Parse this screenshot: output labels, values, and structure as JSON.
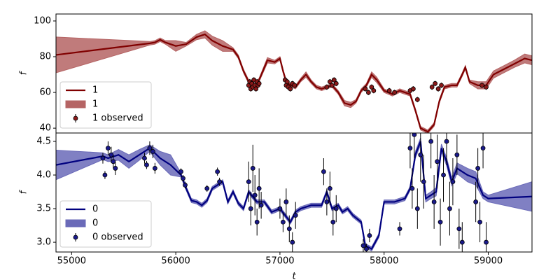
{
  "chart_data": [
    {
      "type": "line",
      "ylabel": "f",
      "legend": "lower left",
      "xlim": [
        54850,
        59420
      ],
      "ylim": [
        37.3,
        103.9
      ],
      "yticks": [
        40,
        60,
        80,
        100
      ],
      "series": [
        {
          "name": "1",
          "color": "#800000",
          "x": [
            54850,
            55750,
            55800,
            55850,
            55900,
            56000,
            56100,
            56200,
            56280,
            56350,
            56450,
            56550,
            56600,
            56650,
            56700,
            56750,
            56800,
            56880,
            56950,
            57000,
            57030,
            57060,
            57100,
            57150,
            57200,
            57250,
            57300,
            57350,
            57400,
            57500,
            57560,
            57620,
            57680,
            57730,
            57780,
            57830,
            57880,
            57930,
            58000,
            58080,
            58150,
            58200,
            58250,
            58300,
            58350,
            58420,
            58480,
            58530,
            58580,
            58650,
            58700,
            58750,
            58780,
            58820,
            58900,
            58980,
            59050,
            59150,
            59250,
            59350,
            59420
          ],
          "values": [
            81,
            87.5,
            88,
            89.5,
            88,
            86,
            87,
            91,
            92.5,
            89,
            86,
            84,
            80,
            72,
            66,
            63,
            67,
            78,
            77,
            79,
            72,
            66,
            64,
            63,
            67,
            70,
            66,
            63,
            62,
            64,
            60,
            54,
            53,
            55,
            61,
            64,
            70,
            67,
            61,
            59,
            61,
            60,
            59,
            50,
            40,
            38,
            42,
            55,
            63,
            64,
            64,
            70,
            74,
            66,
            64,
            64,
            70,
            73,
            76,
            79,
            78
          ]
        }
      ],
      "band": {
        "name": "1",
        "color": "#b56464",
        "errors": [
          10,
          1,
          1,
          1,
          1,
          3,
          1,
          1.5,
          2,
          2.5,
          3,
          1,
          1,
          1,
          1,
          1,
          1,
          1.5,
          1,
          1,
          1,
          1,
          1,
          1,
          1,
          1.5,
          1,
          1,
          1,
          1,
          1,
          1.5,
          1.5,
          1,
          1,
          1,
          1.5,
          1.5,
          1,
          1,
          1,
          1,
          1,
          1,
          1,
          1,
          1,
          1,
          1,
          1,
          1,
          1,
          1,
          1,
          2,
          2,
          2,
          2,
          2,
          2.5,
          2.5
        ]
      },
      "observed": {
        "name": "1 observed",
        "color": "#8b1a1a",
        "x": [
          56700,
          56710,
          56720,
          56730,
          56740,
          56750,
          56760,
          56770,
          56780,
          56790,
          56800,
          57050,
          57060,
          57070,
          57080,
          57100,
          57120,
          57140,
          57450,
          57480,
          57500,
          57520,
          57540,
          57820,
          57850,
          57880,
          57900,
          58050,
          58100,
          58250,
          58280,
          58320,
          58460,
          58490,
          58520,
          58550,
          58940,
          58980
        ],
        "values": [
          64,
          66,
          62,
          65,
          63,
          67,
          64,
          62,
          66,
          64,
          65,
          67,
          64,
          66,
          63,
          62,
          65,
          64,
          63,
          66,
          64,
          67,
          65,
          62,
          60,
          63,
          61,
          61,
          60,
          61,
          62,
          56,
          63,
          65,
          62,
          64,
          64,
          63
        ],
        "errors": [
          1.5,
          1.5,
          1.5,
          1.5,
          1.5,
          1.5,
          1.5,
          1.5,
          1.5,
          1.5,
          1.5,
          1.5,
          1.5,
          1.5,
          1.5,
          1.5,
          1.5,
          1.5,
          1.5,
          1.5,
          1.5,
          1.5,
          1.5,
          1.5,
          1.5,
          1.5,
          1.5,
          1.5,
          1.5,
          1.5,
          1.5,
          1.5,
          1.5,
          1.5,
          1.5,
          1.5,
          1.5,
          1.5
        ]
      }
    },
    {
      "type": "line",
      "ylabel": "f",
      "xlabel": "t",
      "legend": "lower left",
      "xlim": [
        54850,
        59420
      ],
      "xticks": [
        55000,
        56000,
        57000,
        58000,
        59000
      ],
      "ylim": [
        2.855,
        4.625
      ],
      "yticks": [
        {
          "value": 3.0,
          "label": "3.0"
        },
        3.5,
        {
          "value": 4.0,
          "label": "4.0"
        },
        4.5
      ],
      "series": [
        {
          "name": "0",
          "color": "#00007f",
          "x": [
            54850,
            55300,
            55350,
            55450,
            55550,
            55650,
            55750,
            55850,
            55950,
            56050,
            56100,
            56150,
            56200,
            56250,
            56300,
            56350,
            56450,
            56500,
            56550,
            56600,
            56650,
            56700,
            56780,
            56850,
            56920,
            57000,
            57050,
            57100,
            57150,
            57200,
            57300,
            57400,
            57450,
            57500,
            57560,
            57600,
            57650,
            57700,
            57780,
            57820,
            57880,
            57950,
            58000,
            58100,
            58200,
            58250,
            58300,
            58350,
            58400,
            58450,
            58500,
            58550,
            58600,
            58650,
            58700,
            58800,
            58880,
            58950,
            59000,
            59420
          ],
          "values": [
            4.15,
            4.28,
            4.25,
            4.3,
            4.2,
            4.3,
            4.4,
            4.25,
            4.15,
            4.0,
            3.8,
            3.62,
            3.6,
            3.55,
            3.62,
            3.8,
            3.9,
            3.6,
            3.75,
            3.58,
            3.5,
            3.75,
            3.6,
            3.6,
            3.45,
            3.5,
            3.4,
            3.3,
            3.45,
            3.5,
            3.55,
            3.55,
            3.75,
            3.5,
            3.55,
            3.45,
            3.5,
            3.4,
            3.3,
            2.95,
            2.9,
            3.1,
            3.6,
            3.6,
            3.65,
            3.8,
            4.3,
            4.5,
            3.65,
            3.7,
            3.75,
            4.4,
            4.2,
            3.9,
            4.1,
            4.0,
            3.95,
            3.7,
            3.65,
            3.68
          ]
        }
      ],
      "band": {
        "name": "0",
        "color": "#6a6ab8",
        "errors": [
          0.22,
          0.05,
          0.05,
          0.08,
          0.1,
          0.08,
          0.05,
          0.1,
          0.15,
          0.03,
          0.03,
          0.03,
          0.03,
          0.03,
          0.03,
          0.03,
          0.03,
          0.03,
          0.03,
          0.03,
          0.03,
          0.03,
          0.03,
          0.03,
          0.03,
          0.03,
          0.03,
          0.03,
          0.03,
          0.03,
          0.03,
          0.03,
          0.03,
          0.03,
          0.03,
          0.03,
          0.03,
          0.03,
          0.03,
          0.03,
          0.03,
          0.03,
          0.03,
          0.03,
          0.03,
          0.03,
          0.05,
          0.05,
          0.05,
          0.05,
          0.06,
          0.06,
          0.06,
          0.06,
          0.08,
          0.1,
          0.1,
          0.05,
          0.05,
          0.22
        ]
      },
      "observed": {
        "name": "0 observed",
        "color": "#1a1a8b",
        "x": [
          55300,
          55320,
          55350,
          55380,
          55400,
          55420,
          55700,
          55720,
          55750,
          55780,
          55800,
          56050,
          56070,
          56090,
          56300,
          56400,
          56420,
          56700,
          56720,
          56740,
          56760,
          56780,
          56800,
          56820,
          57000,
          57030,
          57060,
          57090,
          57120,
          57150,
          57420,
          57450,
          57480,
          57510,
          57540,
          57800,
          57830,
          57860,
          58150,
          58250,
          58270,
          58290,
          58320,
          58350,
          58380,
          58450,
          58480,
          58510,
          58540,
          58570,
          58600,
          58630,
          58660,
          58700,
          58720,
          58750,
          58880,
          58900,
          58920,
          58950,
          58980
        ],
        "values": [
          4.25,
          4.0,
          4.4,
          4.3,
          4.2,
          4.1,
          4.25,
          4.15,
          4.4,
          4.35,
          4.1,
          4.05,
          3.95,
          3.85,
          3.8,
          4.05,
          3.9,
          3.9,
          3.5,
          4.1,
          3.7,
          3.3,
          3.8,
          3.55,
          3.5,
          3.3,
          3.6,
          3.2,
          3.0,
          3.4,
          4.05,
          3.6,
          3.8,
          3.3,
          3.5,
          2.95,
          2.9,
          3.1,
          3.2,
          4.4,
          3.8,
          4.6,
          3.5,
          4.3,
          3.9,
          4.5,
          3.6,
          4.2,
          3.3,
          4.0,
          4.5,
          3.5,
          3.9,
          4.3,
          3.2,
          3.0,
          3.6,
          4.1,
          3.3,
          4.4,
          3.0
        ],
        "errors": [
          0.08,
          0.06,
          0.1,
          0.12,
          0.1,
          0.1,
          0.08,
          0.06,
          0.1,
          0.1,
          0.08,
          0.05,
          0.05,
          0.05,
          0.05,
          0.06,
          0.06,
          0.3,
          0.25,
          0.35,
          0.3,
          0.2,
          0.3,
          0.2,
          0.15,
          0.15,
          0.2,
          0.2,
          0.15,
          0.2,
          0.2,
          0.2,
          0.25,
          0.2,
          0.2,
          0.1,
          0.08,
          0.1,
          0.1,
          0.3,
          0.3,
          0.35,
          0.3,
          0.4,
          0.4,
          0.4,
          0.4,
          0.4,
          0.35,
          0.4,
          0.35,
          0.4,
          0.35,
          0.3,
          0.3,
          0.3,
          0.3,
          0.3,
          0.3,
          0.3,
          0.3
        ]
      }
    }
  ]
}
